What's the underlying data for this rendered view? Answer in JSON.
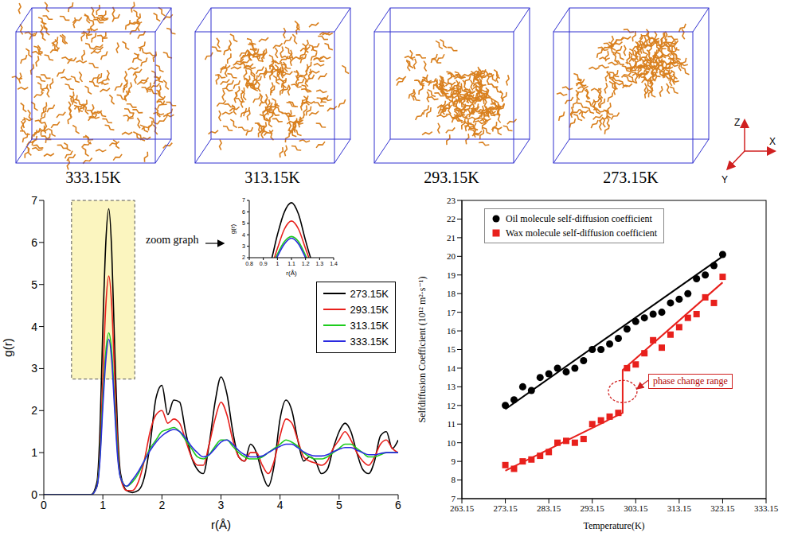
{
  "snapshots": {
    "labels": [
      "333.15K",
      "313.15K",
      "293.15K",
      "273.15K"
    ],
    "axes": [
      "Z",
      "X",
      "Y"
    ]
  },
  "chart_data": [
    {
      "type": "line",
      "x_label": "r(Å)",
      "y_label": "g(r)",
      "xlim": [
        0,
        6
      ],
      "xticks": [
        0,
        1,
        2,
        3,
        4,
        5,
        6
      ],
      "ylim": [
        0,
        7
      ],
      "yticks": [
        0,
        1,
        2,
        3,
        4,
        5,
        6,
        7
      ],
      "grid": false,
      "legend": "right",
      "x": [
        0,
        0.5,
        0.8,
        0.9,
        0.95,
        1.0,
        1.05,
        1.1,
        1.15,
        1.2,
        1.25,
        1.3,
        1.4,
        1.5,
        1.6,
        1.7,
        1.8,
        1.9,
        2.0,
        2.1,
        2.2,
        2.3,
        2.4,
        2.5,
        2.6,
        2.7,
        2.8,
        2.9,
        3.0,
        3.1,
        3.2,
        3.3,
        3.4,
        3.5,
        3.6,
        3.7,
        3.8,
        3.9,
        4.0,
        4.1,
        4.2,
        4.3,
        4.4,
        4.5,
        4.6,
        4.7,
        4.8,
        4.9,
        5.0,
        5.1,
        5.2,
        5.3,
        5.4,
        5.5,
        5.6,
        5.7,
        5.8,
        5.9,
        6.0
      ],
      "series": [
        {
          "name": "273.15K",
          "color": "#000000",
          "line_style": "solid",
          "values": [
            0,
            0,
            0,
            0.3,
            1.5,
            4.0,
            6.0,
            6.8,
            5.8,
            3.5,
            1.5,
            0.5,
            0.1,
            0.05,
            0.1,
            0.4,
            1.2,
            2.3,
            2.6,
            1.9,
            2.25,
            2.2,
            1.5,
            0.9,
            0.6,
            0.5,
            1.2,
            2.2,
            2.8,
            2.4,
            1.5,
            0.9,
            0.8,
            1.2,
            1.0,
            0.5,
            0.2,
            0.7,
            1.8,
            2.25,
            2.0,
            1.3,
            0.8,
            0.9,
            0.8,
            0.5,
            0.6,
            1.1,
            1.5,
            1.7,
            1.5,
            1.0,
            0.6,
            0.5,
            0.8,
            1.4,
            1.5,
            1.1,
            1.3
          ]
        },
        {
          "name": "293.15K",
          "color": "#e8201c",
          "line_style": "solid",
          "values": [
            0,
            0,
            0,
            0.2,
            1.0,
            2.8,
            4.5,
            5.2,
            4.5,
            2.8,
            1.2,
            0.4,
            0.1,
            0.1,
            0.3,
            0.8,
            1.5,
            1.9,
            2.0,
            1.7,
            1.8,
            1.7,
            1.3,
            0.9,
            0.7,
            0.7,
            1.2,
            1.8,
            2.2,
            1.9,
            1.3,
            0.9,
            0.8,
            1.0,
            1.0,
            0.7,
            0.5,
            0.8,
            1.4,
            1.8,
            1.7,
            1.3,
            0.9,
            0.8,
            0.75,
            0.7,
            0.8,
            1.1,
            1.3,
            1.5,
            1.3,
            1.0,
            0.8,
            0.7,
            0.9,
            1.2,
            1.3,
            1.1,
            1.0
          ]
        },
        {
          "name": "313.15K",
          "color": "#1ecc1e",
          "line_style": "solid",
          "values": [
            0,
            0,
            0,
            0.2,
            0.9,
            2.3,
            3.4,
            3.85,
            3.4,
            2.2,
            1.0,
            0.4,
            0.2,
            0.3,
            0.5,
            0.8,
            1.1,
            1.3,
            1.5,
            1.55,
            1.6,
            1.5,
            1.3,
            1.1,
            0.9,
            0.85,
            0.95,
            1.15,
            1.3,
            1.3,
            1.15,
            1.0,
            0.9,
            0.85,
            0.85,
            0.9,
            1.0,
            1.1,
            1.2,
            1.3,
            1.25,
            1.15,
            1.0,
            0.9,
            0.85,
            0.85,
            0.9,
            1.0,
            1.1,
            1.2,
            1.2,
            1.1,
            1.0,
            0.9,
            0.9,
            0.95,
            1.0,
            1.0,
            1.0
          ]
        },
        {
          "name": "333.15K",
          "color": "#2a2ae0",
          "line_style": "solid",
          "values": [
            0,
            0,
            0,
            0.2,
            0.8,
            2.1,
            3.2,
            3.7,
            3.2,
            2.0,
            0.9,
            0.4,
            0.2,
            0.35,
            0.55,
            0.8,
            1.05,
            1.25,
            1.4,
            1.5,
            1.55,
            1.5,
            1.35,
            1.15,
            1.0,
            0.9,
            0.95,
            1.1,
            1.25,
            1.3,
            1.2,
            1.05,
            0.95,
            0.9,
            0.9,
            0.92,
            1.0,
            1.08,
            1.15,
            1.2,
            1.2,
            1.12,
            1.02,
            0.95,
            0.92,
            0.92,
            0.95,
            1.02,
            1.08,
            1.12,
            1.12,
            1.06,
            1.0,
            0.95,
            0.95,
            0.98,
            1.0,
            1.0,
            1.0
          ]
        }
      ],
      "highlight": {
        "x": [
          0.47,
          1.54
        ],
        "y": [
          2.75,
          7
        ]
      },
      "annotation": "zoom graph",
      "inset": {
        "x_label": "r(Å)",
        "y_label": "g(r)",
        "xlim": [
          0.8,
          1.4
        ],
        "xticks": [
          0.8,
          0.9,
          1.0,
          1.1,
          1.2,
          1.3,
          1.4
        ],
        "ylim": [
          2,
          7
        ],
        "yticks": [
          2,
          3,
          4,
          5,
          6,
          7
        ]
      }
    },
    {
      "type": "scatter",
      "x_label": "Temperature(K)",
      "y_label": "Selfdiffusion Coefficient (10¹² m²·s⁻¹)",
      "xlim": [
        263.15,
        333.15
      ],
      "xticks": [
        263.15,
        273.15,
        283.15,
        293.15,
        303.15,
        313.15,
        323.15,
        333.15
      ],
      "ylim": [
        7,
        23
      ],
      "yticks": [
        7,
        8,
        9,
        10,
        11,
        12,
        13,
        14,
        15,
        16,
        17,
        18,
        19,
        20,
        21,
        22,
        23
      ],
      "grid": false,
      "legend": "top-left",
      "x": [
        273.15,
        275.15,
        277.15,
        279.15,
        281.15,
        283.15,
        285.15,
        287.15,
        289.15,
        291.15,
        293.15,
        295.15,
        297.15,
        299.15,
        301.15,
        303.15,
        305.15,
        307.15,
        309.15,
        311.15,
        313.15,
        315.15,
        317.15,
        319.15,
        321.15,
        323.15
      ],
      "series": [
        {
          "name": "Oil molecule self-diffusion coefficient",
          "color": "#000000",
          "marker": "circle",
          "values": [
            12.0,
            12.3,
            13.0,
            12.8,
            13.5,
            13.7,
            14.0,
            13.8,
            14.0,
            14.4,
            15.0,
            15.0,
            15.3,
            15.6,
            16.1,
            16.5,
            16.7,
            16.9,
            17.0,
            17.5,
            17.7,
            18.0,
            18.8,
            19.0,
            19.5,
            20.1
          ],
          "fit": {
            "x": [
              273.15,
              323.15
            ],
            "values": [
              11.8,
              20.0
            ]
          }
        },
        {
          "name": "Wax molecule self-diffusion coefficient",
          "color": "#e8201c",
          "marker": "square",
          "values": [
            8.8,
            8.6,
            9.0,
            9.1,
            9.3,
            9.5,
            10.0,
            10.1,
            10.0,
            10.2,
            11.0,
            11.2,
            11.4,
            11.6,
            14.0,
            14.2,
            14.8,
            15.5,
            15.1,
            15.8,
            16.2,
            16.7,
            16.9,
            17.8,
            17.5,
            18.9
          ],
          "fit": {
            "x": [
              273.15,
              300.15,
              300.15,
              323.15
            ],
            "values": [
              8.5,
              11.6,
              13.9,
              18.6
            ]
          }
        }
      ],
      "annotation": {
        "text": "phase change range",
        "x": 300.15,
        "y": 12.75
      }
    }
  ]
}
